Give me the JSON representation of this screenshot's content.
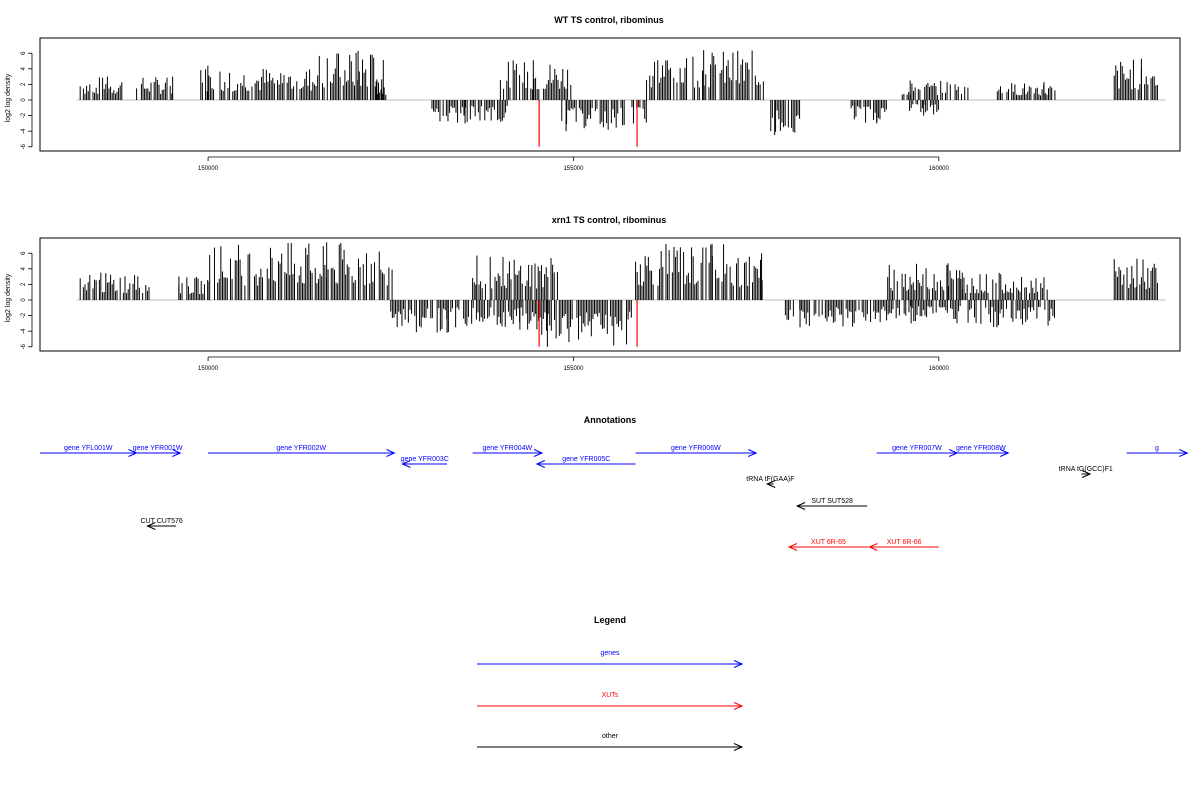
{
  "chart_data": [
    {
      "type": "bar",
      "title": "WT TS control, ribominus",
      "xlabel": "",
      "ylabel": "log2 log density",
      "xlim": [
        147700,
        163300
      ],
      "ylim": [
        -6,
        6
      ],
      "xticks": [
        150000,
        155000,
        160000
      ],
      "xtick_labels": [
        "150000",
        "155000",
        "160000"
      ],
      "yticks": [
        -6,
        -4,
        -2,
        0,
        2,
        4,
        6
      ],
      "ytick_labels": [
        "-6",
        "-4",
        "-2",
        "0",
        "2",
        "4",
        "6"
      ],
      "positive_regions": [
        {
          "start": 148250,
          "end": 148820,
          "max": 3.0
        },
        {
          "start": 149000,
          "end": 149520,
          "max": 3.0
        },
        {
          "start": 149900,
          "end": 151500,
          "max": 4.4
        },
        {
          "start": 151500,
          "end": 152400,
          "max": 6.3
        },
        {
          "start": 152300,
          "end": 152450,
          "max": 2.4
        },
        {
          "start": 154000,
          "end": 155000,
          "max": 5.1
        },
        {
          "start": 156000,
          "end": 157600,
          "max": 6.4
        },
        {
          "start": 159500,
          "end": 160400,
          "max": 2.5
        },
        {
          "start": 160800,
          "end": 161600,
          "max": 2.3
        },
        {
          "start": 162400,
          "end": 163000,
          "max": 5.3
        }
      ],
      "negative_regions": [
        {
          "start": 153020,
          "end": 154100,
          "max": 3.0
        },
        {
          "start": 154840,
          "end": 155700,
          "max": 4.0
        },
        {
          "start": 155800,
          "end": 156000,
          "max": 3.0
        },
        {
          "start": 157700,
          "end": 158100,
          "max": 4.5
        },
        {
          "start": 158800,
          "end": 159300,
          "max": 3.0
        },
        {
          "start": 159600,
          "end": 160000,
          "max": 2.0
        }
      ],
      "highlighted_bars": [
        {
          "x": 154530,
          "value": -6.0
        },
        {
          "x": 155870,
          "value": -6.0
        }
      ],
      "colors": {
        "bars": "#000000",
        "highlight": "#ff0000",
        "baseline": "#bbbbbb"
      }
    },
    {
      "type": "bar",
      "title": "xrn1 TS control, ribominus",
      "xlabel": "",
      "ylabel": "log2 log density",
      "xlim": [
        147700,
        163300
      ],
      "ylim": [
        -6,
        6
      ],
      "xticks": [
        150000,
        155000,
        160000
      ],
      "xtick_labels": [
        "150000",
        "155000",
        "160000"
      ],
      "yticks": [
        -6,
        -4,
        -2,
        0,
        2,
        4,
        6
      ],
      "ytick_labels": [
        "-6",
        "-4",
        "-2",
        "0",
        "2",
        "4",
        "6"
      ],
      "positive_regions": [
        {
          "start": 148250,
          "end": 149200,
          "max": 3.5
        },
        {
          "start": 149600,
          "end": 150000,
          "max": 3.0
        },
        {
          "start": 150000,
          "end": 152550,
          "max": 7.4
        },
        {
          "start": 153620,
          "end": 154800,
          "max": 5.7
        },
        {
          "start": 155850,
          "end": 157100,
          "max": 7.2
        },
        {
          "start": 157100,
          "end": 157600,
          "max": 6.0
        },
        {
          "start": 159300,
          "end": 160300,
          "max": 4.7
        },
        {
          "start": 160300,
          "end": 161500,
          "max": 3.5
        },
        {
          "start": 162400,
          "end": 163000,
          "max": 5.3
        }
      ],
      "negative_regions": [
        {
          "start": 152500,
          "end": 153300,
          "max": 4.2
        },
        {
          "start": 153300,
          "end": 154500,
          "max": 3.8
        },
        {
          "start": 154500,
          "end": 155800,
          "max": 6.0
        },
        {
          "start": 157900,
          "end": 159000,
          "max": 3.5
        },
        {
          "start": 159000,
          "end": 160300,
          "max": 3.0
        },
        {
          "start": 160400,
          "end": 161600,
          "max": 3.5
        }
      ],
      "highlighted_bars": [
        {
          "x": 154530,
          "value": -6.0
        },
        {
          "x": 155870,
          "value": -6.0
        }
      ],
      "colors": {
        "bars": "#000000",
        "highlight": "#ff0000",
        "baseline": "#bbbbbb"
      }
    }
  ],
  "annotations": {
    "title": "Annotations",
    "items": [
      {
        "label": "gene YFL001W",
        "start": 147700,
        "end": 149020,
        "dir": "right",
        "color": "#0000ff",
        "row": 0
      },
      {
        "label": "gene YFR001W",
        "start": 149000,
        "end": 149620,
        "dir": "right",
        "color": "#0000ff",
        "row": 0
      },
      {
        "label": "gene YFR002W",
        "start": 150000,
        "end": 152550,
        "dir": "right",
        "color": "#0000ff",
        "row": 0
      },
      {
        "label": "gene YFR004W",
        "start": 153620,
        "end": 154570,
        "dir": "right",
        "color": "#0000ff",
        "row": 0
      },
      {
        "label": "gene YFR006W",
        "start": 155850,
        "end": 157500,
        "dir": "right",
        "color": "#0000ff",
        "row": 0
      },
      {
        "label": "gene YFR007W",
        "start": 159150,
        "end": 160250,
        "dir": "right",
        "color": "#0000ff",
        "row": 0
      },
      {
        "label": "gene YFR008W",
        "start": 160200,
        "end": 160950,
        "dir": "right",
        "color": "#0000ff",
        "row": 0
      },
      {
        "label": "g",
        "start": 162570,
        "end": 163400,
        "dir": "right",
        "color": "#0000ff",
        "row": 0
      },
      {
        "label": "gene YFR003C",
        "start": 152660,
        "end": 153270,
        "dir": "left",
        "color": "#0000ff",
        "row": 1
      },
      {
        "label": "gene YFR005C",
        "start": 154500,
        "end": 155850,
        "dir": "left",
        "color": "#0000ff",
        "row": 1
      },
      {
        "label": "tRNA tG(GCC)F1",
        "start": 161950,
        "end": 162070,
        "dir": "right",
        "color": "#000000",
        "row": 2
      },
      {
        "label": "tRNA tF(GAA)F",
        "start": 157650,
        "end": 157740,
        "dir": "left",
        "color": "#000000",
        "row": 3
      },
      {
        "label": "SUT SUT528",
        "start": 158060,
        "end": 159020,
        "dir": "left",
        "color": "#000000",
        "row": 4
      },
      {
        "label": "CUT CUT576",
        "start": 149170,
        "end": 149560,
        "dir": "left",
        "color": "#000000",
        "row": 5
      },
      {
        "label": "XUT 6R-65",
        "start": 157950,
        "end": 159030,
        "dir": "left",
        "color": "#ff0000",
        "row": 6
      },
      {
        "label": "XUT 6R-66",
        "start": 159050,
        "end": 160000,
        "dir": "left",
        "color": "#ff0000",
        "row": 6
      }
    ]
  },
  "legend": {
    "title": "Legend",
    "items": [
      {
        "label": "genes",
        "color": "#0000ff"
      },
      {
        "label": "XUTs",
        "color": "#ff0000"
      },
      {
        "label": "other",
        "color": "#000000"
      }
    ]
  }
}
